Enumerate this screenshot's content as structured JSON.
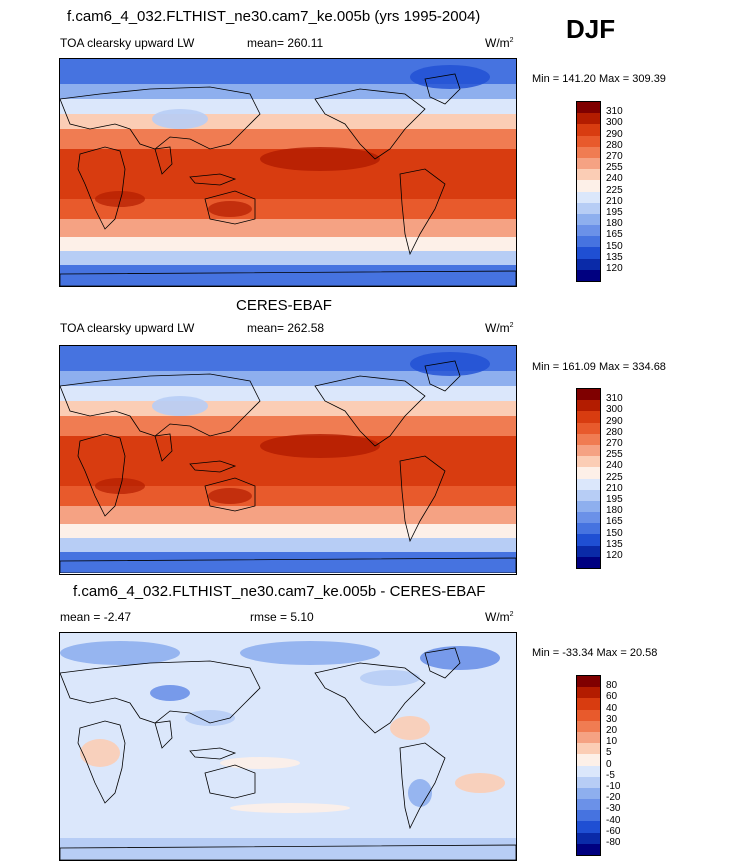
{
  "season": "DJF",
  "panels": [
    {
      "title": "f.cam6_4_032.FLTHIST_ne30.cam7_ke.005b (yrs 1995-2004)",
      "left": "TOA clearsky upward LW",
      "middle": "mean= 260.11",
      "units": "W/m",
      "units_sup": "2",
      "minmax": "Min = 141.20 Max = 309.39",
      "colorbar_labels": [
        "310",
        "300",
        "290",
        "280",
        "270",
        "255",
        "240",
        "225",
        "210",
        "195",
        "180",
        "165",
        "150",
        "135",
        "120"
      ]
    },
    {
      "title": "CERES-EBAF",
      "left": "TOA clearsky upward LW",
      "middle": "mean= 262.58",
      "units": "W/m",
      "units_sup": "2",
      "minmax": "Min = 161.09 Max = 334.68",
      "colorbar_labels": [
        "310",
        "300",
        "290",
        "280",
        "270",
        "255",
        "240",
        "225",
        "210",
        "195",
        "180",
        "165",
        "150",
        "135",
        "120"
      ]
    },
    {
      "title": "f.cam6_4_032.FLTHIST_ne30.cam7_ke.005b - CERES-EBAF",
      "left": "mean =  -2.47",
      "middle": "rmse =   5.10",
      "units": "W/m",
      "units_sup": "2",
      "minmax": "Min = -33.34 Max =  20.58",
      "colorbar_labels": [
        "80",
        "60",
        "40",
        "30",
        "20",
        "10",
        "5",
        "0",
        "-5",
        "-10",
        "-20",
        "-30",
        "-40",
        "-60",
        "-80"
      ]
    }
  ],
  "colors": {
    "scale": [
      "#7f0000",
      "#b31c00",
      "#d83c10",
      "#e85a2c",
      "#f07c52",
      "#f5a283",
      "#fbcdb5",
      "#fdf0e8",
      "#dbe7fb",
      "#b7cdf5",
      "#8eafee",
      "#6b91e8",
      "#4673e0",
      "#1f4fd3",
      "#0a2aa8",
      "#000080"
    ]
  }
}
